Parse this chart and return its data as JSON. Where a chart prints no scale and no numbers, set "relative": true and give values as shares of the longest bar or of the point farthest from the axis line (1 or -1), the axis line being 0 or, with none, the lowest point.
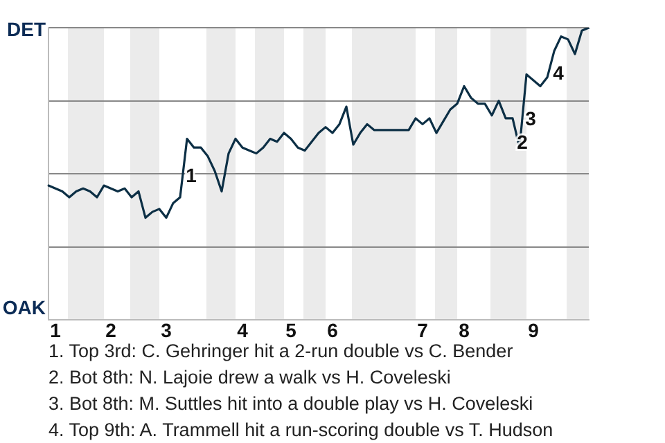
{
  "chart_data": {
    "type": "line",
    "relative": true,
    "categories": [
      null,
      "1",
      null,
      null,
      null,
      null,
      null,
      null,
      null,
      "2",
      null,
      null,
      null,
      null,
      null,
      null,
      null,
      "3",
      null,
      null,
      null,
      null,
      null,
      null,
      null,
      null,
      null,
      null,
      "4",
      null,
      null,
      null,
      null,
      null,
      null,
      "5",
      null,
      null,
      null,
      null,
      null,
      "6",
      null,
      null,
      null,
      null,
      null,
      null,
      null,
      null,
      null,
      null,
      null,
      null,
      "7",
      null,
      null,
      null,
      null,
      null,
      "8",
      null,
      null,
      null,
      null,
      null,
      null,
      null,
      null,
      null,
      "9",
      null,
      null,
      null,
      null,
      null,
      null,
      null,
      null
    ],
    "values": [
      0.46,
      0.45,
      0.44,
      0.42,
      0.44,
      0.45,
      0.44,
      0.42,
      0.46,
      0.45,
      0.44,
      0.45,
      0.42,
      0.44,
      0.35,
      0.37,
      0.38,
      0.35,
      0.4,
      0.42,
      0.62,
      0.59,
      0.59,
      0.56,
      0.51,
      0.44,
      0.57,
      0.62,
      0.59,
      0.58,
      0.57,
      0.59,
      0.62,
      0.61,
      0.64,
      0.62,
      0.59,
      0.58,
      0.61,
      0.64,
      0.66,
      0.64,
      0.67,
      0.73,
      0.6,
      0.64,
      0.67,
      0.65,
      0.65,
      0.65,
      0.65,
      0.65,
      0.65,
      0.69,
      0.67,
      0.69,
      0.64,
      0.68,
      0.72,
      0.74,
      0.8,
      0.76,
      0.74,
      0.74,
      0.7,
      0.75,
      0.69,
      0.69,
      0.59,
      0.84,
      0.82,
      0.8,
      0.83,
      0.92,
      0.97,
      0.96,
      0.91,
      0.99,
      1
    ],
    "color": "#0c2f45",
    "marker": "none",
    "line_style": "solid",
    "grid": "y",
    "legend": false,
    "annotations": [
      "DET",
      "OAK",
      "1",
      "2",
      "3",
      "4",
      "1. Top 3rd: C. Gehringer hit a 2-run double vs C. Bender",
      "2. Bot 8th: N. Lajoie drew a walk vs H. Coveleski",
      "3. Bot 8th: M. Suttles hit into a double play vs H. Coveleski",
      "4. Top 9th: A. Trammell hit a run-scoring double vs T. Hudson"
    ]
  }
}
